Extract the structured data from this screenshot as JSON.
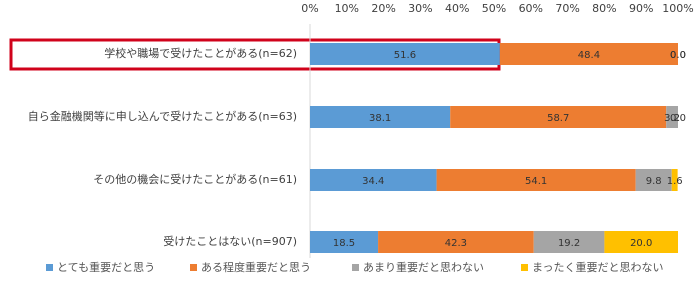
{
  "chart_data": {
    "type": "stacked-bar-horizontal",
    "categories": [
      "学校や職場で受けたことがある(n=62)",
      "自ら金融機関等に申し込んで受けたことがある(n=63)",
      "その他の機会に受けたことがある(n=61)",
      "受けたことはない(n=907)"
    ],
    "series": [
      {
        "name": "とても重要だと思う",
        "color": "#5b9bd5",
        "values": [
          51.6,
          38.1,
          34.4,
          18.5
        ],
        "value_labels": [
          "51.6",
          "38.1",
          "34.4",
          "18.5"
        ]
      },
      {
        "name": "ある程度重要だと思う",
        "color": "#ed7d31",
        "values": [
          48.4,
          58.7,
          54.1,
          42.3
        ],
        "value_labels": [
          "48.4",
          "58.7",
          "54.1",
          "42.3"
        ]
      },
      {
        "name": "あまり重要だと思わない",
        "color": "#a5a5a5",
        "values": [
          0.0,
          3.2,
          9.8,
          19.2
        ],
        "value_labels": [
          "0.0",
          "3.2",
          "9.8",
          "19.2"
        ]
      },
      {
        "name": "まったく重要だと思わない",
        "color": "#ffc000",
        "values": [
          0.0,
          0.0,
          1.6,
          20.0
        ],
        "value_labels": [
          "0.0",
          "0.0",
          "1.6",
          "20.0"
        ]
      }
    ],
    "xlim": [
      0,
      100
    ],
    "xticks": [
      {
        "value": 0,
        "label": "0%"
      },
      {
        "value": 10,
        "label": "10%"
      },
      {
        "value": 20,
        "label": "20%"
      },
      {
        "value": 30,
        "label": "30%"
      },
      {
        "value": 40,
        "label": "40%"
      },
      {
        "value": 50,
        "label": "50%"
      },
      {
        "value": 60,
        "label": "60%"
      },
      {
        "value": 70,
        "label": "70%"
      },
      {
        "value": 80,
        "label": "80%"
      },
      {
        "value": 90,
        "label": "90%"
      },
      {
        "value": 100,
        "label": "100%"
      }
    ]
  }
}
